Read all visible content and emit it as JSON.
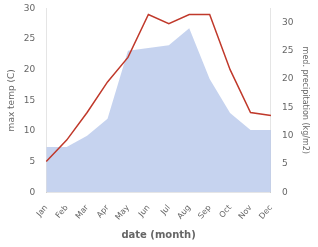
{
  "chart_data": {
    "type": "line",
    "categories": [
      "Jan",
      "Feb",
      "Mar",
      "Apr",
      "May",
      "Jun",
      "Jul",
      "Aug",
      "Sep",
      "Oct",
      "Nov",
      "Dec"
    ],
    "xlabel": "date (month)",
    "ylabel": "max temp (C)",
    "y2label": "med. precipitation (kg/m2)",
    "series": [
      {
        "type": "line",
        "color": "#c0392b",
        "values": [
          5,
          8.5,
          13,
          18,
          22,
          29,
          27.5,
          29,
          29,
          20,
          13,
          12.5
        ]
      },
      {
        "type": "area",
        "color": "#aec0e8",
        "axis": "y2",
        "values": [
          8,
          8,
          10,
          13,
          25,
          25.5,
          26,
          29,
          20,
          14,
          11,
          11
        ]
      }
    ],
    "ylim": [
      0,
      30
    ],
    "yticks": [
      0,
      5,
      10,
      15,
      20,
      25,
      30
    ],
    "y2lim": [
      0,
      32.5
    ],
    "y2ticks": [
      0,
      5,
      10,
      15,
      20,
      25,
      30
    ],
    "grid": false
  }
}
